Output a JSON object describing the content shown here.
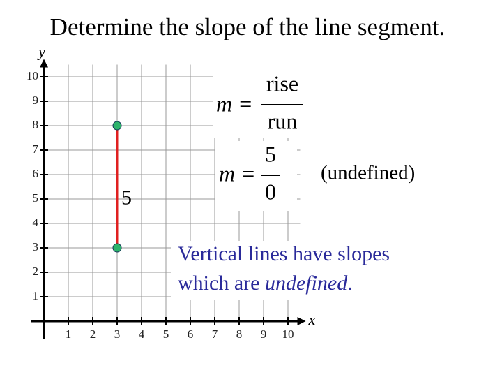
{
  "chart_data": {
    "type": "line",
    "title": "Determine the slope of the line segment.",
    "x_label": "x",
    "y_label": "y",
    "x": [
      3,
      3
    ],
    "series": [
      {
        "color": "#e02020",
        "marker_color": "#2db36b",
        "values": [
          3,
          8
        ]
      }
    ],
    "xlim": [
      0,
      10.5
    ],
    "ylim": [
      0,
      10.5
    ],
    "xticks": [
      1,
      2,
      3,
      4,
      5,
      6,
      7,
      8,
      9,
      10
    ],
    "yticks": [
      1,
      2,
      3,
      4,
      5,
      6,
      7,
      8,
      9,
      10
    ],
    "grid": true,
    "annotations": {
      "rise_label": "5",
      "formula1": {
        "lhs": "m =",
        "numerator": "rise",
        "denominator": "run"
      },
      "formula2": {
        "lhs": "m =",
        "numerator": "5",
        "denominator": "0"
      },
      "note": "(undefined)",
      "statement": {
        "line1": "Vertical lines have slopes",
        "line2_start": "which are ",
        "line2_emphasis": "undefined",
        "line2_end": "."
      }
    }
  }
}
